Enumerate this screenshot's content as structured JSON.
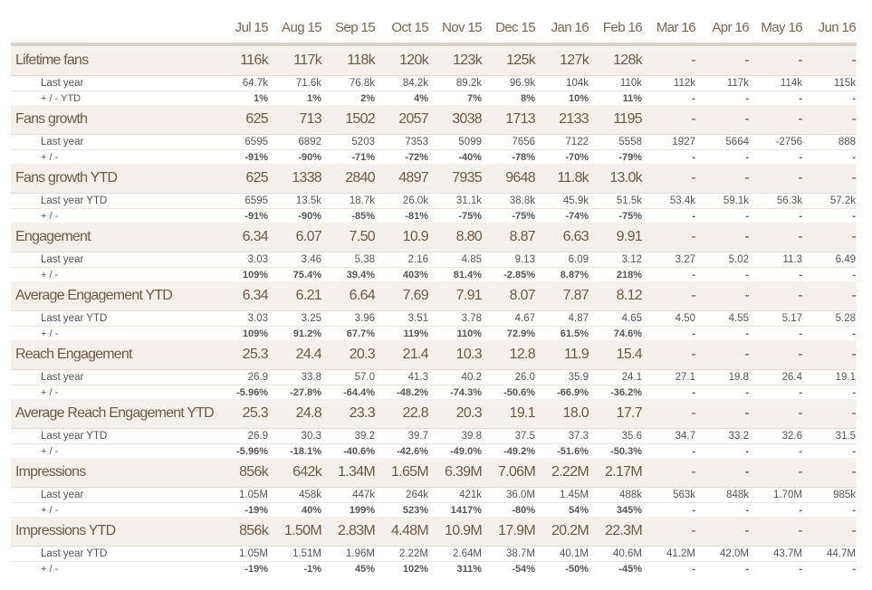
{
  "columns": [
    "Jul 15",
    "Aug 15",
    "Sep 15",
    "Oct 15",
    "Nov 15",
    "Dec 15",
    "Jan 16",
    "Feb 16",
    "Mar 16",
    "Apr 16",
    "May 16",
    "Jun 16"
  ],
  "colors": {
    "positive": "#4db845",
    "negative": "#e0505c",
    "header_bg": "#f4f1ec",
    "text": "#6e5a43"
  },
  "sections": [
    {
      "title": "Lifetime fans",
      "values": [
        "116k",
        "117k",
        "118k",
        "120k",
        "123k",
        "125k",
        "127k",
        "128k",
        "-",
        "-",
        "-",
        "-"
      ],
      "rows": [
        {
          "label": "Last year",
          "values": [
            "64.7k",
            "71.6k",
            "76.8k",
            "84.2k",
            "89.2k",
            "96.9k",
            "104k",
            "110k",
            "112k",
            "117k",
            "114k",
            "115k"
          ]
        },
        {
          "label": "+ / - YTD",
          "values": [
            "1%",
            "1%",
            "2%",
            "4%",
            "7%",
            "8%",
            "10%",
            "11%",
            "-",
            "-",
            "-",
            "-"
          ],
          "change": true
        }
      ]
    },
    {
      "title": "Fans growth",
      "values": [
        "625",
        "713",
        "1502",
        "2057",
        "3038",
        "1713",
        "2133",
        "1195",
        "-",
        "-",
        "-",
        "-"
      ],
      "rows": [
        {
          "label": "Last year",
          "values": [
            "6595",
            "6892",
            "5203",
            "7353",
            "5099",
            "7656",
            "7122",
            "5558",
            "1927",
            "5664",
            "-2756",
            "888"
          ]
        },
        {
          "label": "+ / -",
          "values": [
            "-91%",
            "-90%",
            "-71%",
            "-72%",
            "-40%",
            "-78%",
            "-70%",
            "-79%",
            "-",
            "-",
            "-",
            "-"
          ],
          "change": true
        }
      ]
    },
    {
      "title": "Fans growth YTD",
      "values": [
        "625",
        "1338",
        "2840",
        "4897",
        "7935",
        "9648",
        "11.8k",
        "13.0k",
        "-",
        "-",
        "-",
        "-"
      ],
      "rows": [
        {
          "label": "Last year YTD",
          "values": [
            "6595",
            "13.5k",
            "18.7k",
            "26.0k",
            "31.1k",
            "38.8k",
            "45.9k",
            "51.5k",
            "53.4k",
            "59.1k",
            "56.3k",
            "57.2k"
          ]
        },
        {
          "label": "+ / -",
          "values": [
            "-91%",
            "-90%",
            "-85%",
            "-81%",
            "-75%",
            "-75%",
            "-74%",
            "-75%",
            "-",
            "-",
            "-",
            "-"
          ],
          "change": true
        }
      ]
    },
    {
      "title": "Engagement",
      "values": [
        "6.34",
        "6.07",
        "7.50",
        "10.9",
        "8.80",
        "8.87",
        "6.63",
        "9.91",
        "-",
        "-",
        "-",
        "-"
      ],
      "rows": [
        {
          "label": "Last year",
          "values": [
            "3.03",
            "3.46",
            "5.38",
            "2.16",
            "4.85",
            "9.13",
            "6.09",
            "3.12",
            "3.27",
            "5.02",
            "11.3",
            "6.49"
          ]
        },
        {
          "label": "+ / -",
          "values": [
            "109%",
            "75.4%",
            "39.4%",
            "403%",
            "81.4%",
            "-2.85%",
            "8.87%",
            "218%",
            "-",
            "-",
            "-",
            "-"
          ],
          "change": true
        }
      ]
    },
    {
      "title": "Average Engagement YTD",
      "values": [
        "6.34",
        "6.21",
        "6.64",
        "7.69",
        "7.91",
        "8.07",
        "7.87",
        "8.12",
        "-",
        "-",
        "-",
        "-"
      ],
      "rows": [
        {
          "label": "Last year YTD",
          "values": [
            "3.03",
            "3.25",
            "3.96",
            "3.51",
            "3.78",
            "4.67",
            "4.87",
            "4.65",
            "4.50",
            "4.55",
            "5.17",
            "5.28"
          ]
        },
        {
          "label": "+ / -",
          "values": [
            "109%",
            "91.2%",
            "67.7%",
            "119%",
            "110%",
            "72.9%",
            "61.5%",
            "74.6%",
            "-",
            "-",
            "-",
            "-"
          ],
          "change": true
        }
      ]
    },
    {
      "title": "Reach Engagement",
      "values": [
        "25.3",
        "24.4",
        "20.3",
        "21.4",
        "10.3",
        "12.8",
        "11.9",
        "15.4",
        "-",
        "-",
        "-",
        "-"
      ],
      "rows": [
        {
          "label": "Last year",
          "values": [
            "26.9",
            "33.8",
            "57.0",
            "41.3",
            "40.2",
            "26.0",
            "35.9",
            "24.1",
            "27.1",
            "19.8",
            "26.4",
            "19.1"
          ]
        },
        {
          "label": "+ / -",
          "values": [
            "-5.96%",
            "-27.8%",
            "-64.4%",
            "-48.2%",
            "-74.3%",
            "-50.6%",
            "-66.9%",
            "-36.2%",
            "-",
            "-",
            "-",
            "-"
          ],
          "change": true
        }
      ]
    },
    {
      "title": "Average Reach Engagement YTD",
      "values": [
        "25.3",
        "24.8",
        "23.3",
        "22.8",
        "20.3",
        "19.1",
        "18.0",
        "17.7",
        "-",
        "-",
        "-",
        "-"
      ],
      "rows": [
        {
          "label": "Last year YTD",
          "values": [
            "26.9",
            "30.3",
            "39.2",
            "39.7",
            "39.8",
            "37.5",
            "37.3",
            "35.6",
            "34.7",
            "33.2",
            "32.6",
            "31.5"
          ]
        },
        {
          "label": "+ / -",
          "values": [
            "-5.96%",
            "-18.1%",
            "-40.6%",
            "-42.6%",
            "-49.0%",
            "-49.2%",
            "-51.6%",
            "-50.3%",
            "-",
            "-",
            "-",
            "-"
          ],
          "change": true
        }
      ]
    },
    {
      "title": "Impressions",
      "values": [
        "856k",
        "642k",
        "1.34M",
        "1.65M",
        "6.39M",
        "7.06M",
        "2.22M",
        "2.17M",
        "-",
        "-",
        "-",
        "-"
      ],
      "rows": [
        {
          "label": "Last year",
          "values": [
            "1.05M",
            "458k",
            "447k",
            "264k",
            "421k",
            "36.0M",
            "1.45M",
            "488k",
            "563k",
            "848k",
            "1.70M",
            "985k"
          ]
        },
        {
          "label": "+ / -",
          "values": [
            "-19%",
            "40%",
            "199%",
            "523%",
            "1417%",
            "-80%",
            "54%",
            "345%",
            "-",
            "-",
            "-",
            "-"
          ],
          "change": true
        }
      ]
    },
    {
      "title": "Impressions YTD",
      "values": [
        "856k",
        "1.50M",
        "2.83M",
        "4.48M",
        "10.9M",
        "17.9M",
        "20.2M",
        "22.3M",
        "-",
        "-",
        "-",
        "-"
      ],
      "rows": [
        {
          "label": "Last year YTD",
          "values": [
            "1.05M",
            "1.51M",
            "1.96M",
            "2.22M",
            "2.64M",
            "38.7M",
            "40.1M",
            "40.6M",
            "41.2M",
            "42.0M",
            "43.7M",
            "44.7M"
          ]
        },
        {
          "label": "+ / -",
          "values": [
            "-19%",
            "-1%",
            "45%",
            "102%",
            "311%",
            "-54%",
            "-50%",
            "-45%",
            "-",
            "-",
            "-",
            "-"
          ],
          "change": true
        }
      ]
    }
  ]
}
